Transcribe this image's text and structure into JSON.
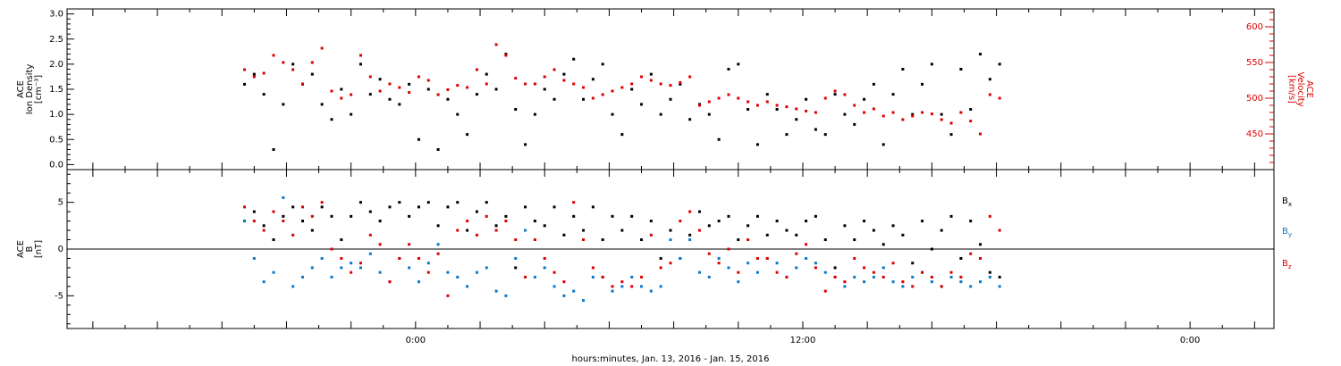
{
  "chart_data": [
    {
      "type": "scatter",
      "panel": "plasma",
      "ylabel_lines": [
        "ACE",
        "Ion Density",
        "[cm⁻³]"
      ],
      "ylabel_right_lines": [
        "ACE",
        "Velocity",
        "[km/s]"
      ],
      "ylim": [
        -0.1,
        3.1
      ],
      "ylim_right": [
        400,
        625
      ],
      "yticks": [
        "0.0",
        "0.5",
        "1.0",
        "1.5",
        "2.0",
        "2.5",
        "3.0"
      ],
      "yticks_right": [
        "450",
        "500",
        "550",
        "600"
      ],
      "series": [
        {
          "axis": "left",
          "color": "#000000",
          "x_hours": [
            -5.3,
            -5.0,
            -4.7,
            -4.4,
            -4.1,
            -3.8,
            -3.5,
            -3.2,
            -2.9,
            -2.6,
            -2.3,
            -2.0,
            -1.7,
            -1.4,
            -1.1,
            -0.8,
            -0.5,
            -0.2,
            0.1,
            0.4,
            0.7,
            1.0,
            1.3,
            1.6,
            1.9,
            2.2,
            2.5,
            2.8,
            3.1,
            3.4,
            3.7,
            4.0,
            4.3,
            4.6,
            4.9,
            5.2,
            5.5,
            5.8,
            6.1,
            6.4,
            6.7,
            7.0,
            7.3,
            7.6,
            7.9,
            8.2,
            8.5,
            8.8,
            9.1,
            9.4,
            9.7,
            10.0,
            10.3,
            10.6,
            10.9,
            11.2,
            11.5,
            11.8,
            12.1,
            12.4,
            12.7,
            13.0,
            13.3,
            13.6,
            13.9,
            14.2,
            14.5,
            14.8,
            15.1,
            15.4,
            15.7,
            16.0,
            16.3,
            16.6,
            16.9,
            17.2,
            17.5,
            17.8,
            18.1
          ],
          "values": [
            1.6,
            1.8,
            1.4,
            0.3,
            1.2,
            2.0,
            1.6,
            1.8,
            1.2,
            0.9,
            1.5,
            1.0,
            2.0,
            1.4,
            1.7,
            1.3,
            1.2,
            1.6,
            0.5,
            1.5,
            0.3,
            1.3,
            1.0,
            0.6,
            1.4,
            1.8,
            1.5,
            2.2,
            1.1,
            0.4,
            1.0,
            1.5,
            1.3,
            1.8,
            2.1,
            1.3,
            1.7,
            2.0,
            1.0,
            0.6,
            1.5,
            1.2,
            1.8,
            1.0,
            1.3,
            1.6,
            0.9,
            1.2,
            1.0,
            0.5,
            1.9,
            2.0,
            1.1,
            0.4,
            1.4,
            1.1,
            0.6,
            0.9,
            1.3,
            0.7,
            0.6,
            1.4,
            1.0,
            0.8,
            1.3,
            1.6,
            0.4,
            1.4,
            1.9,
            1.0,
            1.6,
            2.0,
            1.0,
            0.6,
            1.9,
            1.1,
            2.2,
            1.7,
            2.0
          ]
        },
        {
          "axis": "right",
          "color": "#dd0000",
          "x_hours": [
            -5.3,
            -5.0,
            -4.7,
            -4.4,
            -4.1,
            -3.8,
            -3.5,
            -3.2,
            -2.9,
            -2.6,
            -2.3,
            -2.0,
            -1.7,
            -1.4,
            -1.1,
            -0.8,
            -0.5,
            -0.2,
            0.1,
            0.4,
            0.7,
            1.0,
            1.3,
            1.6,
            1.9,
            2.2,
            2.5,
            2.8,
            3.1,
            3.4,
            3.7,
            4.0,
            4.3,
            4.6,
            4.9,
            5.2,
            5.5,
            5.8,
            6.1,
            6.4,
            6.7,
            7.0,
            7.3,
            7.6,
            7.9,
            8.2,
            8.5,
            8.8,
            9.1,
            9.4,
            9.7,
            10.0,
            10.3,
            10.6,
            10.9,
            11.2,
            11.5,
            11.8,
            12.1,
            12.4,
            12.7,
            13.0,
            13.3,
            13.6,
            13.9,
            14.2,
            14.5,
            14.8,
            15.1,
            15.4,
            15.7,
            16.0,
            16.3,
            16.6,
            16.9,
            17.2,
            17.5,
            17.8,
            18.1
          ],
          "values": [
            540,
            530,
            535,
            560,
            550,
            540,
            520,
            550,
            570,
            510,
            500,
            505,
            560,
            530,
            510,
            520,
            515,
            508,
            530,
            525,
            505,
            512,
            518,
            515,
            540,
            520,
            575,
            560,
            528,
            520,
            520,
            530,
            540,
            525,
            520,
            515,
            500,
            505,
            510,
            515,
            520,
            530,
            525,
            520,
            518,
            522,
            530,
            490,
            495,
            500,
            505,
            500,
            495,
            490,
            495,
            490,
            488,
            485,
            482,
            480,
            500,
            510,
            505,
            490,
            480,
            485,
            475,
            480,
            470,
            475,
            480,
            478,
            470,
            465,
            480,
            468,
            450,
            505,
            500
          ]
        }
      ]
    },
    {
      "type": "scatter",
      "panel": "magnetic",
      "ylabel_lines": [
        "ACE",
        "B",
        "[nT]"
      ],
      "ylim": [
        -8.5,
        8.5
      ],
      "yticks": [
        "-5",
        "0",
        "5"
      ],
      "series": [
        {
          "name": "Bₓ",
          "color": "#000000",
          "x_hours": [
            -5.3,
            -5.0,
            -4.7,
            -4.4,
            -4.1,
            -3.8,
            -3.5,
            -3.2,
            -2.9,
            -2.6,
            -2.3,
            -2.0,
            -1.7,
            -1.4,
            -1.1,
            -0.8,
            -0.5,
            -0.2,
            0.1,
            0.4,
            0.7,
            1.0,
            1.3,
            1.6,
            1.9,
            2.2,
            2.5,
            2.8,
            3.1,
            3.4,
            3.7,
            4.0,
            4.3,
            4.6,
            4.9,
            5.2,
            5.5,
            5.8,
            6.1,
            6.4,
            6.7,
            7.0,
            7.3,
            7.6,
            7.9,
            8.2,
            8.5,
            8.8,
            9.1,
            9.4,
            9.7,
            10.0,
            10.3,
            10.6,
            10.9,
            11.2,
            11.5,
            11.8,
            12.1,
            12.4,
            12.7,
            13.0,
            13.3,
            13.6,
            13.9,
            14.2,
            14.5,
            14.8,
            15.1,
            15.4,
            15.7,
            16.0,
            16.3,
            16.6,
            16.9,
            17.2,
            17.5,
            17.8,
            18.1
          ],
          "values": [
            3.0,
            4.0,
            2.5,
            1.0,
            3.5,
            4.5,
            3.0,
            2.0,
            4.5,
            3.5,
            1.0,
            3.5,
            5.0,
            4.0,
            3.0,
            4.5,
            5.0,
            3.5,
            4.5,
            5.0,
            2.5,
            4.5,
            5.0,
            2.0,
            4.0,
            5.0,
            2.5,
            3.5,
            -2.0,
            4.5,
            3.0,
            2.5,
            4.5,
            1.5,
            3.5,
            2.0,
            4.5,
            1.0,
            3.5,
            2.0,
            3.5,
            1.0,
            3.0,
            -1.0,
            2.0,
            -1.0,
            1.5,
            4.0,
            2.5,
            3.0,
            3.5,
            1.0,
            2.5,
            3.5,
            1.5,
            3.0,
            2.0,
            1.5,
            3.0,
            3.5,
            1.0,
            -2.0,
            2.5,
            1.0,
            3.0,
            2.0,
            0.5,
            2.5,
            1.5,
            -1.5,
            3.0,
            0.0,
            2.0,
            3.5,
            -1.0,
            3.0,
            0.5,
            -2.5,
            -3.0
          ]
        },
        {
          "name": "Bᵧ",
          "color": "#0a78c8",
          "x_hours": [
            -5.3,
            -5.0,
            -4.7,
            -4.4,
            -4.1,
            -3.8,
            -3.5,
            -3.2,
            -2.9,
            -2.6,
            -2.3,
            -2.0,
            -1.7,
            -1.4,
            -1.1,
            -0.8,
            -0.5,
            -0.2,
            0.1,
            0.4,
            0.7,
            1.0,
            1.3,
            1.6,
            1.9,
            2.2,
            2.5,
            2.8,
            3.1,
            3.4,
            3.7,
            4.0,
            4.3,
            4.6,
            4.9,
            5.2,
            5.5,
            5.8,
            6.1,
            6.4,
            6.7,
            7.0,
            7.3,
            7.6,
            7.9,
            8.2,
            8.5,
            8.8,
            9.1,
            9.4,
            9.7,
            10.0,
            10.3,
            10.6,
            10.9,
            11.2,
            11.5,
            11.8,
            12.1,
            12.4,
            12.7,
            13.0,
            13.3,
            13.6,
            13.9,
            14.2,
            14.5,
            14.8,
            15.1,
            15.4,
            15.7,
            16.0,
            16.3,
            16.6,
            16.9,
            17.2,
            17.5,
            17.8,
            18.1
          ],
          "values": [
            3.0,
            -1.0,
            -3.5,
            -2.5,
            5.5,
            -4.0,
            -3.0,
            -2.0,
            -1.0,
            -3.0,
            -2.0,
            -1.5,
            -2.0,
            -0.5,
            -2.5,
            -3.5,
            -1.0,
            -2.0,
            -3.5,
            -1.5,
            0.5,
            -2.5,
            -3.0,
            -4.0,
            -2.5,
            -2.0,
            -4.5,
            -5.0,
            -1.0,
            2.0,
            -3.0,
            -2.0,
            -4.0,
            -5.0,
            -4.5,
            -5.5,
            -3.0,
            -3.0,
            -4.5,
            -4.0,
            -3.0,
            -4.0,
            -4.5,
            -4.0,
            1.0,
            -1.0,
            1.0,
            -2.5,
            -3.0,
            -1.0,
            -2.0,
            -3.5,
            -1.5,
            -2.5,
            -1.0,
            -1.5,
            -3.0,
            -2.0,
            -1.0,
            -1.5,
            -2.5,
            -3.0,
            -4.0,
            -3.0,
            -3.5,
            -3.0,
            -2.0,
            -3.5,
            -4.0,
            -3.0,
            -2.5,
            -3.5,
            -4.0,
            -3.0,
            -3.5,
            -4.0,
            -3.5,
            -3.0,
            -4.0
          ]
        },
        {
          "name": "B_z",
          "color": "#dd0000",
          "x_hours": [
            -5.3,
            -5.0,
            -4.7,
            -4.4,
            -4.1,
            -3.8,
            -3.5,
            -3.2,
            -2.9,
            -2.6,
            -2.3,
            -2.0,
            -1.7,
            -1.4,
            -1.1,
            -0.8,
            -0.5,
            -0.2,
            0.1,
            0.4,
            0.7,
            1.0,
            1.3,
            1.6,
            1.9,
            2.2,
            2.5,
            2.8,
            3.1,
            3.4,
            3.7,
            4.0,
            4.3,
            4.6,
            4.9,
            5.2,
            5.5,
            5.8,
            6.1,
            6.4,
            6.7,
            7.0,
            7.3,
            7.6,
            7.9,
            8.2,
            8.5,
            8.8,
            9.1,
            9.4,
            9.7,
            10.0,
            10.3,
            10.6,
            10.9,
            11.2,
            11.5,
            11.8,
            12.1,
            12.4,
            12.7,
            13.0,
            13.3,
            13.6,
            13.9,
            14.2,
            14.5,
            14.8,
            15.1,
            15.4,
            15.7,
            16.0,
            16.3,
            16.6,
            16.9,
            17.2,
            17.5,
            17.8,
            18.1
          ],
          "values": [
            4.5,
            3.0,
            2.0,
            4.0,
            3.0,
            1.5,
            4.5,
            3.5,
            5.0,
            0.0,
            -1.0,
            -2.5,
            -1.5,
            1.5,
            0.5,
            -3.5,
            -1.0,
            0.5,
            -1.0,
            -2.5,
            -0.5,
            -5.0,
            2.0,
            3.0,
            1.5,
            3.5,
            2.0,
            3.0,
            1.0,
            -3.0,
            1.0,
            -1.0,
            -2.5,
            -3.5,
            5.0,
            1.0,
            -2.0,
            -3.0,
            -4.0,
            -3.5,
            -4.0,
            -3.0,
            1.5,
            -2.0,
            -1.5,
            3.0,
            4.0,
            2.0,
            -0.5,
            -1.5,
            0.0,
            -2.5,
            1.0,
            -1.0,
            -1.0,
            -2.5,
            -3.0,
            -0.5,
            0.5,
            -2.0,
            -4.5,
            -3.0,
            -3.5,
            -1.0,
            -2.0,
            -2.5,
            -3.0,
            -1.5,
            -3.5,
            -4.0,
            -2.5,
            -3.0,
            -4.0,
            -2.5,
            -3.0,
            -0.5,
            -1.0,
            3.5,
            2.0
          ]
        }
      ]
    }
  ],
  "x_axis": {
    "range_hours": [
      -10.8,
      26.6
    ],
    "tick_labels": [
      {
        "hour": 0,
        "label": "0:00"
      },
      {
        "hour": 12,
        "label": "12:00"
      },
      {
        "hour": 24,
        "label": "0:00"
      }
    ],
    "xlabel": "hours:minutes, Jan. 13, 2016 - Jan. 15, 2016"
  },
  "legend": [
    {
      "label": "B",
      "sub": "x",
      "color": "#000000"
    },
    {
      "label": "B",
      "sub": "y",
      "color": "#0a78c8"
    },
    {
      "label": "B",
      "sub": "z",
      "color": "#dd0000"
    }
  ]
}
